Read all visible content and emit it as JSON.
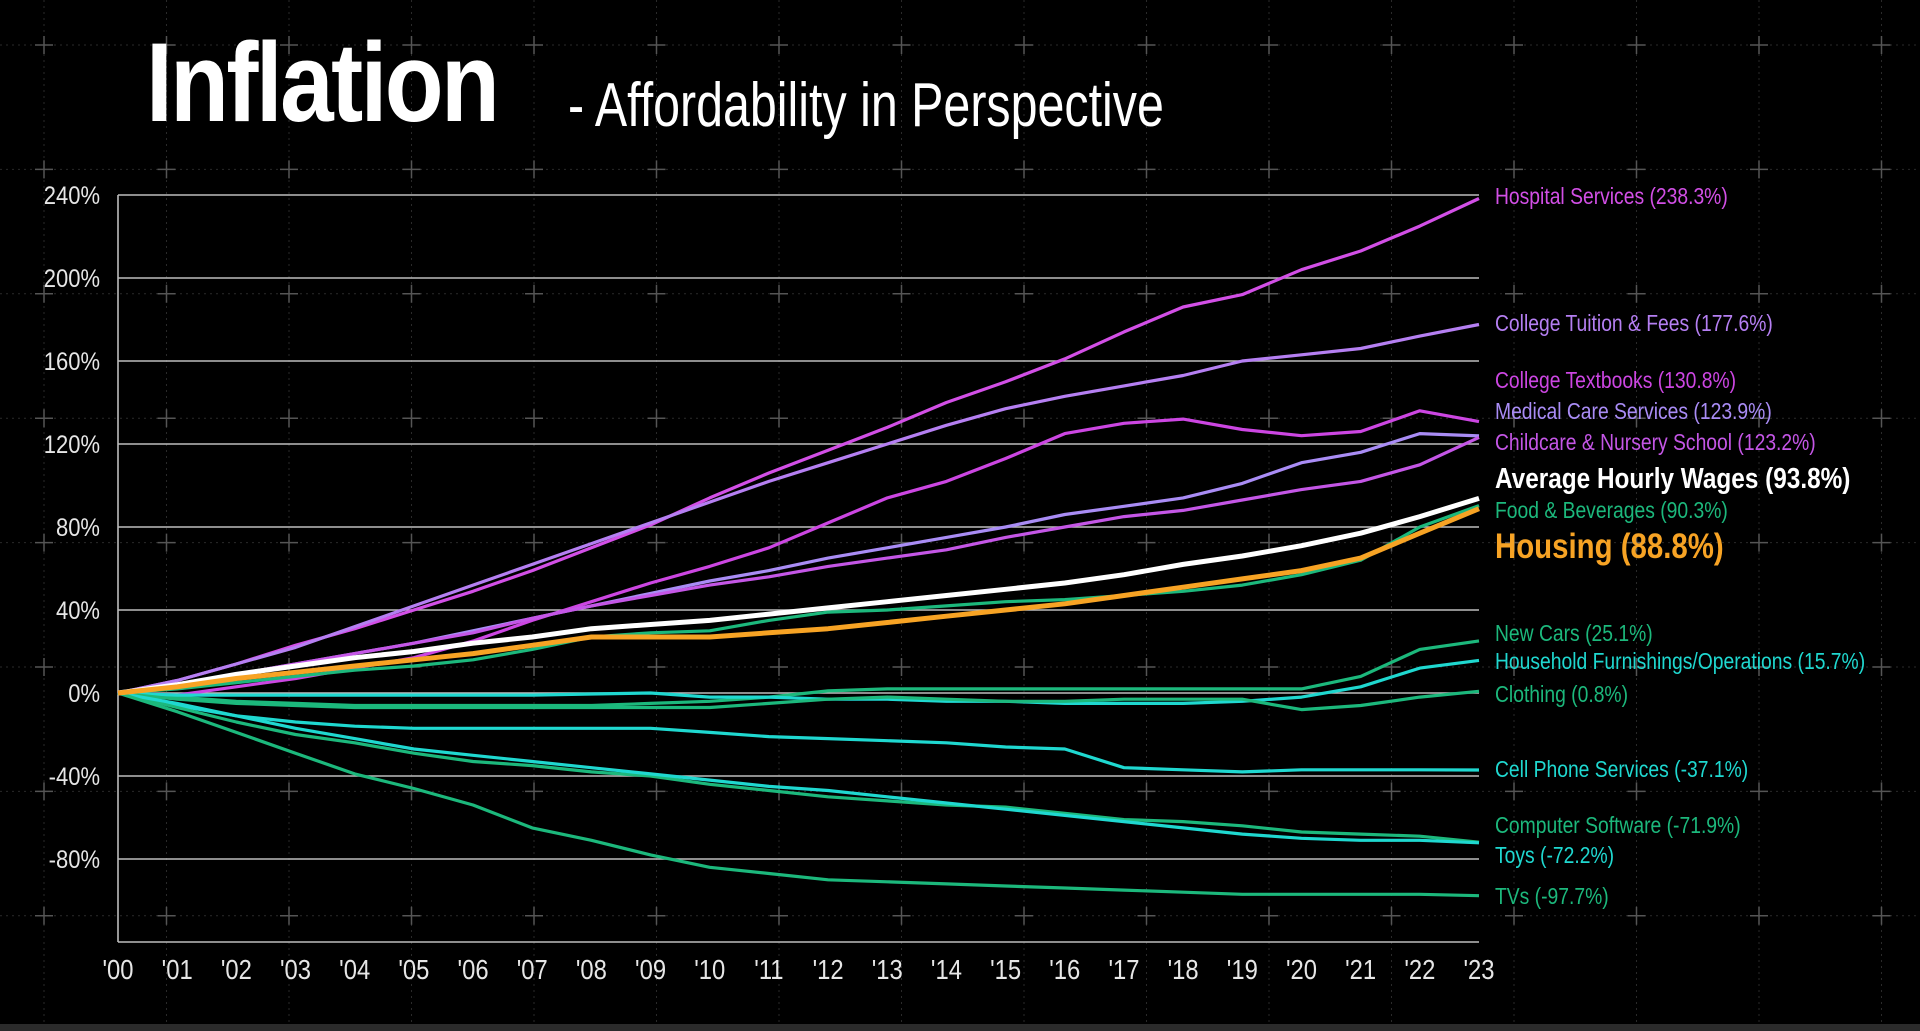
{
  "title": "Inflation",
  "subtitle": "- Affordability in Perspective",
  "chart_data": {
    "type": "line",
    "title": "Inflation",
    "subtitle": "- Affordability in Perspective",
    "xlabel": "",
    "ylabel": "",
    "x": [
      "'00",
      "'01",
      "'02",
      "'03",
      "'04",
      "'05",
      "'06",
      "'07",
      "'08",
      "'09",
      "'10",
      "'11",
      "'12",
      "'13",
      "'14",
      "'15",
      "'16",
      "'17",
      "'18",
      "'19",
      "'20",
      "'21",
      "'22",
      "'23"
    ],
    "y_ticks": [
      "240%",
      "200%",
      "160%",
      "120%",
      "80%",
      "40%",
      "0%",
      "-40%",
      "-80%"
    ],
    "y_tick_values": [
      240,
      200,
      160,
      120,
      80,
      40,
      0,
      -40,
      -80
    ],
    "ylim": [
      -120,
      240
    ],
    "grid": true,
    "legend": "right (end-of-line labels)",
    "series": [
      {
        "name": "Hospital Services (238.3%)",
        "color": "#d24fe6",
        "bold": false,
        "values": [
          0,
          6,
          14,
          23,
          31,
          40,
          49,
          59,
          70,
          81,
          94,
          106,
          117,
          128,
          140,
          150,
          161,
          174,
          186,
          192,
          204,
          213,
          225,
          238.3
        ]
      },
      {
        "name": "College Tuition & Fees (177.6%)",
        "color": "#b57ff2",
        "bold": false,
        "values": [
          0,
          6,
          14,
          22,
          32,
          42,
          52,
          62,
          72,
          82,
          92,
          102,
          111,
          120,
          129,
          137,
          143,
          148,
          153,
          160,
          163,
          166,
          172,
          177.6
        ]
      },
      {
        "name": "College Textbooks (130.8%)",
        "color": "#cc46e2",
        "bold": false,
        "values": [
          0,
          -1,
          3,
          7,
          12,
          17,
          25,
          35,
          44,
          53,
          61,
          70,
          82,
          94,
          102,
          113,
          125,
          130,
          132,
          127,
          124,
          126,
          136,
          130.8
        ]
      },
      {
        "name": "Medical Care Services (123.9%)",
        "color": "#a98cf5",
        "bold": false,
        "values": [
          0,
          4,
          9,
          14,
          19,
          24,
          30,
          36,
          42,
          48,
          54,
          59,
          65,
          70,
          75,
          80,
          86,
          90,
          94,
          101,
          111,
          116,
          125,
          123.9
        ]
      },
      {
        "name": "Childcare & Nursery School (123.2%)",
        "color": "#c456e6",
        "bold": false,
        "values": [
          0,
          4,
          9,
          14,
          19,
          24,
          29,
          36,
          42,
          47,
          52,
          56,
          61,
          65,
          69,
          75,
          80,
          85,
          88,
          93,
          98,
          102,
          110,
          123.2
        ]
      },
      {
        "name": "Average Hourly Wages (93.8%)",
        "color": "#ffffff",
        "bold": true,
        "values": [
          0,
          4,
          9,
          13,
          17,
          20,
          24,
          27,
          31,
          33,
          35,
          38,
          41,
          44,
          47,
          50,
          53,
          57,
          62,
          66,
          71,
          77,
          85,
          93.8
        ]
      },
      {
        "name": "Food & Beverages (90.3%)",
        "color": "#1cb87c",
        "bold": false,
        "values": [
          0,
          2,
          5,
          8,
          11,
          13,
          16,
          21,
          27,
          29,
          30,
          35,
          39,
          40,
          42,
          44,
          45,
          47,
          49,
          52,
          57,
          64,
          80,
          90.3
        ]
      },
      {
        "name": "Housing (88.8%)",
        "color": "#f7a324",
        "bold": true,
        "values": [
          0,
          3,
          7,
          10,
          13,
          16,
          19,
          23,
          27,
          27,
          27,
          29,
          31,
          34,
          37,
          40,
          43,
          47,
          51,
          55,
          59,
          65,
          77,
          88.8
        ]
      },
      {
        "name": "New Cars (25.1%)",
        "color": "#1cb87c",
        "bold": false,
        "values": [
          0,
          -2,
          -4,
          -5,
          -6,
          -6,
          -6,
          -6,
          -6,
          -5,
          -4,
          -2,
          1,
          2,
          2,
          2,
          2,
          2,
          2,
          2,
          2,
          8,
          21,
          25.1
        ]
      },
      {
        "name": "Household Furnishings/Operations (15.7%)",
        "color": "#1fd8d0",
        "bold": false,
        "values": [
          0,
          -1,
          -1,
          -1,
          -1,
          -1,
          -1,
          -1,
          -0.5,
          0,
          -2,
          -2,
          -3,
          -3,
          -4,
          -4,
          -5,
          -5,
          -5,
          -4,
          -2,
          3,
          12,
          15.7
        ]
      },
      {
        "name": "Clothing (0.8%)",
        "color": "#1cb87c",
        "bold": false,
        "values": [
          0,
          -3,
          -5,
          -6,
          -7,
          -7,
          -7,
          -7,
          -7,
          -7,
          -7,
          -5,
          -3,
          -2,
          -3,
          -4,
          -4,
          -3,
          -3,
          -3,
          -8,
          -6,
          -2,
          0.8
        ]
      },
      {
        "name": "Cell Phone Services (-37.1%)",
        "color": "#1fd8d0",
        "bold": false,
        "values": [
          0,
          -6,
          -11,
          -14,
          -16,
          -17,
          -17,
          -17,
          -17,
          -17,
          -19,
          -21,
          -22,
          -23,
          -24,
          -26,
          -27,
          -36,
          -37,
          -38,
          -37,
          -37,
          -37,
          -37.1
        ]
      },
      {
        "name": "Computer Software (-71.9%)",
        "color": "#1cb87c",
        "bold": false,
        "values": [
          0,
          -7,
          -14,
          -20,
          -24,
          -29,
          -33,
          -35,
          -38,
          -40,
          -44,
          -47,
          -50,
          -52,
          -54,
          -55,
          -58,
          -61,
          -62,
          -64,
          -67,
          -68,
          -69,
          -71.9
        ]
      },
      {
        "name": "Toys (-72.2%)",
        "color": "#1fd8d0",
        "bold": false,
        "values": [
          0,
          -5,
          -11,
          -17,
          -22,
          -27,
          -30,
          -33,
          -36,
          -39,
          -42,
          -45,
          -47,
          -50,
          -53,
          -56,
          -59,
          -62,
          -65,
          -68,
          -70,
          -71,
          -71,
          -72.2
        ]
      },
      {
        "name": "TVs (-97.7%)",
        "color": "#1cb87c",
        "bold": false,
        "values": [
          0,
          -9,
          -19,
          -29,
          -39,
          -46,
          -54,
          -65,
          -71,
          -78,
          -84,
          -87,
          -90,
          -91,
          -92,
          -93,
          -94,
          -95,
          -96,
          -97,
          -97,
          -97,
          -97,
          -97.7
        ]
      }
    ]
  }
}
